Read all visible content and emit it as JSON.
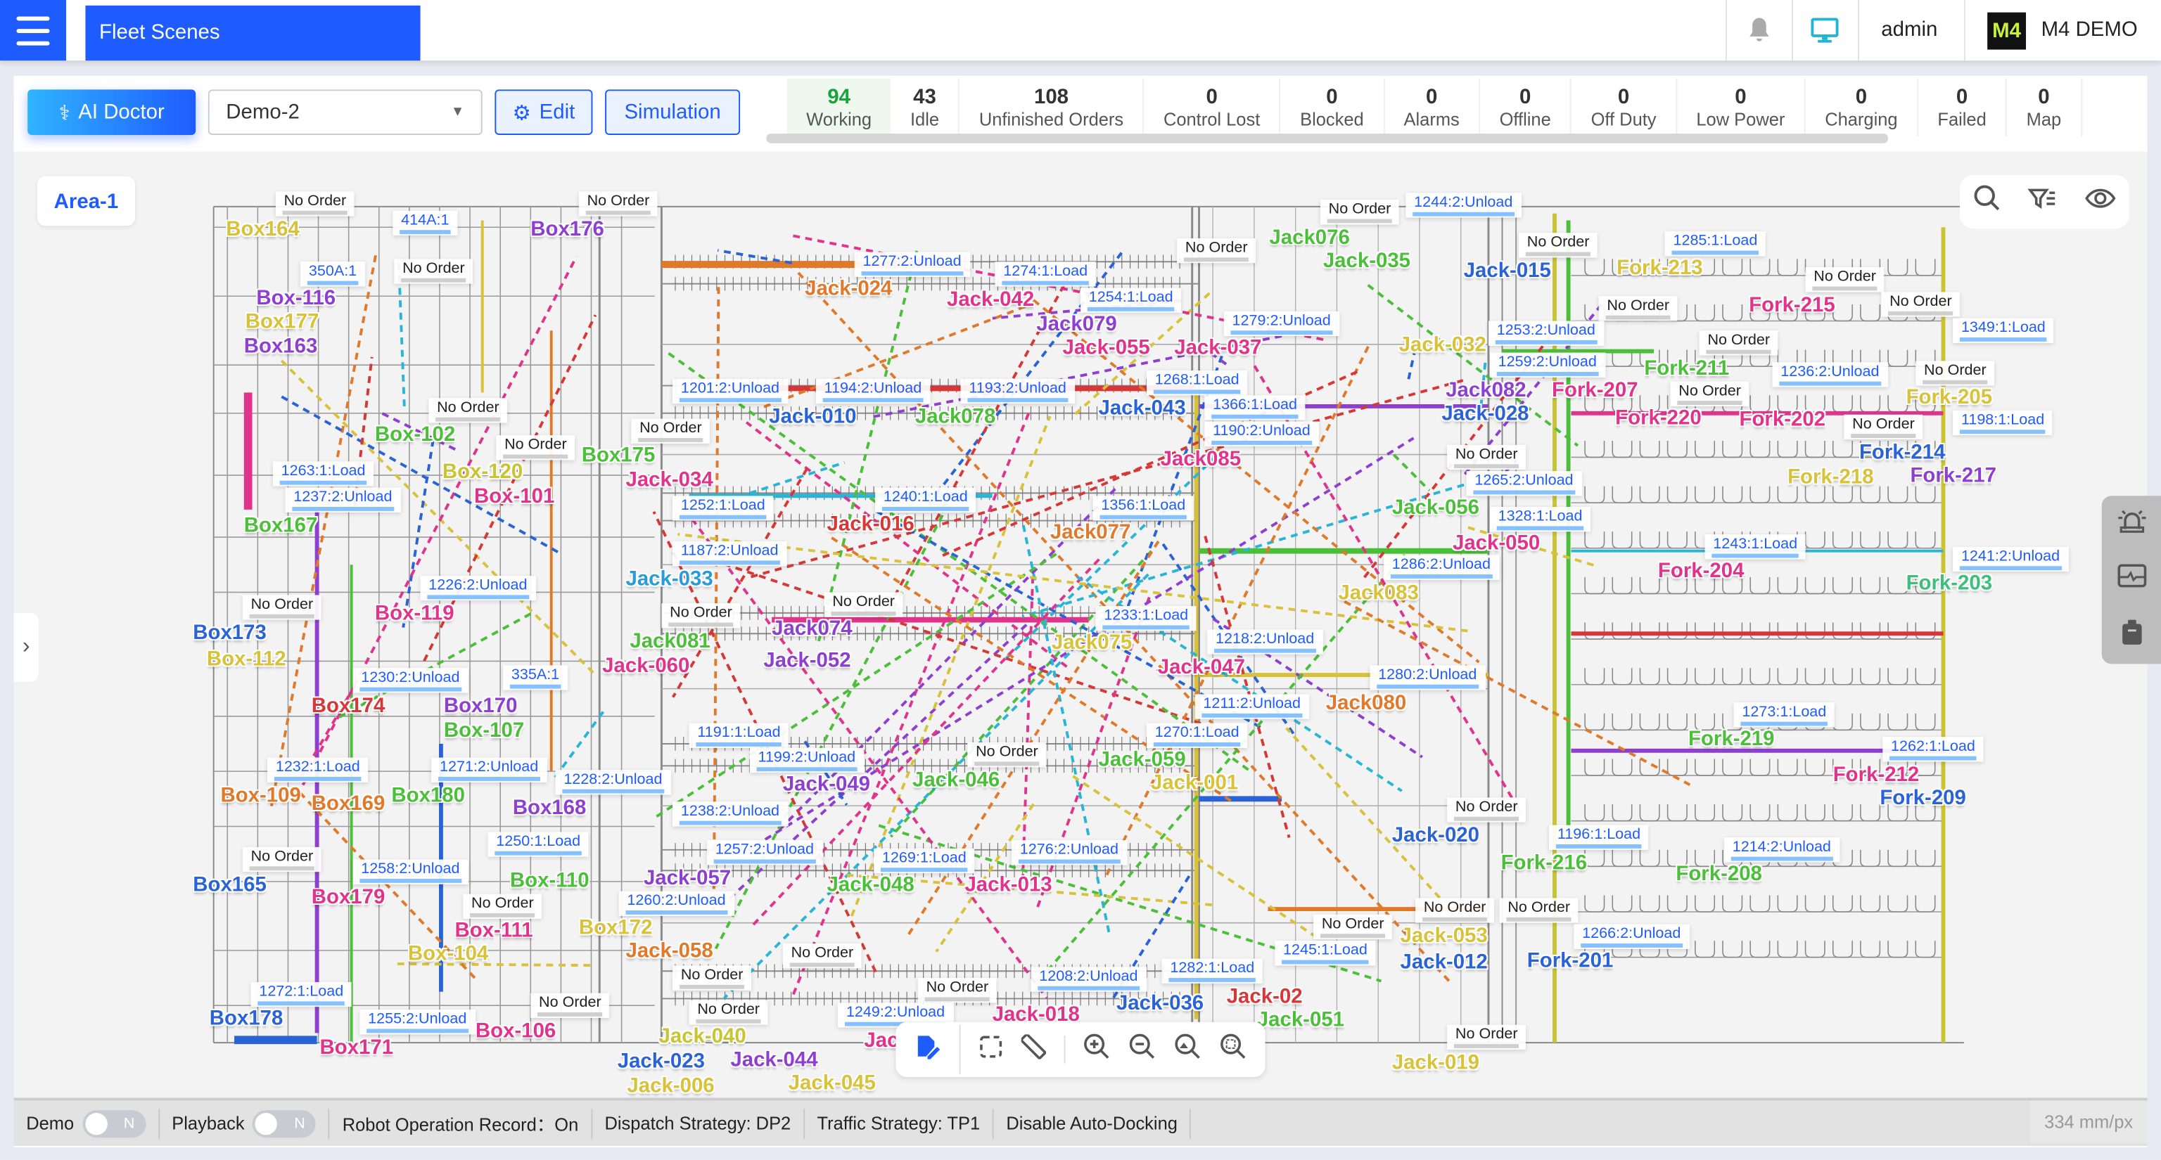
{
  "header": {
    "tab": "Fleet Scenes",
    "user": "admin",
    "brand": "M4 DEMO",
    "logo": "M4",
    "icons": [
      "menu-icon",
      "bell-icon",
      "monitor-icon"
    ]
  },
  "toolbar": {
    "ai_doctor": "AI Doctor",
    "scene": "Demo-2",
    "edit": "Edit",
    "simulation": "Simulation"
  },
  "stats": [
    {
      "n": "94",
      "l": "Working"
    },
    {
      "n": "43",
      "l": "Idle"
    },
    {
      "n": "108",
      "l": "Unfinished Orders"
    },
    {
      "n": "0",
      "l": "Control Lost"
    },
    {
      "n": "0",
      "l": "Blocked"
    },
    {
      "n": "0",
      "l": "Alarms"
    },
    {
      "n": "0",
      "l": "Offline"
    },
    {
      "n": "0",
      "l": "Off Duty"
    },
    {
      "n": "0",
      "l": "Low Power"
    },
    {
      "n": "0",
      "l": "Charging"
    },
    {
      "n": "0",
      "l": "Failed"
    },
    {
      "n": "0",
      "l": "Map"
    }
  ],
  "map": {
    "area": "Area-1",
    "no_order": "No Order",
    "robots": [
      {
        "name": "Box164",
        "color": "#d8c23a"
      },
      {
        "name": "Box-116",
        "color": "#8e3fd0"
      },
      {
        "name": "Box177",
        "color": "#d8c23a"
      },
      {
        "name": "Box163",
        "color": "#8e3fd0"
      },
      {
        "name": "Box176",
        "color": "#8e3fd0"
      },
      {
        "name": "Box-102",
        "color": "#4cbf3a"
      },
      {
        "name": "Box175",
        "color": "#4cbf3a"
      },
      {
        "name": "Box-120",
        "color": "#c9c432"
      },
      {
        "name": "Box167",
        "color": "#4cbf3a"
      },
      {
        "name": "Box-101",
        "color": "#e0348c"
      },
      {
        "name": "Box-119",
        "color": "#e0348c"
      },
      {
        "name": "Box173",
        "color": "#2a63d6"
      },
      {
        "name": "Box-112",
        "color": "#d8c23a"
      },
      {
        "name": "Box174",
        "color": "#d63838"
      },
      {
        "name": "Box170",
        "color": "#8e3fd0"
      },
      {
        "name": "Box-107",
        "color": "#4cbf3a"
      },
      {
        "name": "Box-109",
        "color": "#e07a2a"
      },
      {
        "name": "Box169",
        "color": "#e07a2a"
      },
      {
        "name": "Box180",
        "color": "#4cbf3a"
      },
      {
        "name": "Box168",
        "color": "#8e3fd0"
      },
      {
        "name": "Box165",
        "color": "#2a63d6"
      },
      {
        "name": "Box179",
        "color": "#e0348c"
      },
      {
        "name": "Box-111",
        "color": "#e0348c"
      },
      {
        "name": "Box-110",
        "color": "#4cbf3a"
      },
      {
        "name": "Box-104",
        "color": "#d8c23a"
      },
      {
        "name": "Box172",
        "color": "#d8c23a"
      },
      {
        "name": "Box178",
        "color": "#2a63d6"
      },
      {
        "name": "Box171",
        "color": "#e0348c"
      },
      {
        "name": "Box-106",
        "color": "#e0348c"
      },
      {
        "name": "Jack-024",
        "color": "#e07a2a"
      },
      {
        "name": "Jack-042",
        "color": "#e0348c"
      },
      {
        "name": "Jack079",
        "color": "#8e3fd0"
      },
      {
        "name": "Jack-055",
        "color": "#e0348c"
      },
      {
        "name": "Jack-037",
        "color": "#e0348c"
      },
      {
        "name": "Jack076",
        "color": "#4cbf3a"
      },
      {
        "name": "Jack-035",
        "color": "#4cbf3a"
      },
      {
        "name": "Jack-015",
        "color": "#2a63d6"
      },
      {
        "name": "Jack082",
        "color": "#8e3fd0"
      },
      {
        "name": "Jack-032",
        "color": "#d8c23a"
      },
      {
        "name": "Jack-028",
        "color": "#2a63d6"
      },
      {
        "name": "Jack-034",
        "color": "#e0348c"
      },
      {
        "name": "Jack-010",
        "color": "#2a63d6"
      },
      {
        "name": "Jack078",
        "color": "#4cbf3a"
      },
      {
        "name": "Jack-043",
        "color": "#2a63d6"
      },
      {
        "name": "Jack085",
        "color": "#e0348c"
      },
      {
        "name": "Jack-056",
        "color": "#4cbf3a"
      },
      {
        "name": "Jack-033",
        "color": "#2a9bd6"
      },
      {
        "name": "Jack-016",
        "color": "#d63838"
      },
      {
        "name": "Jack077",
        "color": "#e07a2a"
      },
      {
        "name": "Jack081",
        "color": "#4cbf3a"
      },
      {
        "name": "Jack-050",
        "color": "#e0348c"
      },
      {
        "name": "Jack083",
        "color": "#d8c23a"
      },
      {
        "name": "Jack-060",
        "color": "#e0348c"
      },
      {
        "name": "Jack074",
        "color": "#8e3fd0"
      },
      {
        "name": "Jack-052",
        "color": "#8e3fd0"
      },
      {
        "name": "Jack075",
        "color": "#d8c23a"
      },
      {
        "name": "Jack-047",
        "color": "#e0348c"
      },
      {
        "name": "Jack080",
        "color": "#e07a2a"
      },
      {
        "name": "Jack-057",
        "color": "#8e3fd0"
      },
      {
        "name": "Jack-049",
        "color": "#8e3fd0"
      },
      {
        "name": "Jack-059",
        "color": "#4cbf3a"
      },
      {
        "name": "Jack-001",
        "color": "#d8c23a"
      },
      {
        "name": "Jack-046",
        "color": "#4cbf3a"
      },
      {
        "name": "Jack-020",
        "color": "#2a63d6"
      },
      {
        "name": "Jack-058",
        "color": "#e07a2a"
      },
      {
        "name": "Jack-040",
        "color": "#c9c432"
      },
      {
        "name": "Jack-048",
        "color": "#4cbf3a"
      },
      {
        "name": "Jack-013",
        "color": "#e0348c"
      },
      {
        "name": "Jack-02",
        "color": "#d63838"
      },
      {
        "name": "Jack-051",
        "color": "#4cbf3a"
      },
      {
        "name": "Jack-053",
        "color": "#d8c23a"
      },
      {
        "name": "Jack-012",
        "color": "#2a63d6"
      },
      {
        "name": "Jack-044",
        "color": "#8e3fd0"
      },
      {
        "name": "Jack-045",
        "color": "#d8c23a"
      },
      {
        "name": "Jack072",
        "color": "#e0348c"
      },
      {
        "name": "Jack-018",
        "color": "#e0348c"
      },
      {
        "name": "Jack-036",
        "color": "#2a63d6"
      },
      {
        "name": "Jack-023",
        "color": "#2a63d6"
      },
      {
        "name": "Jack-006",
        "color": "#d8c23a"
      },
      {
        "name": "Jack-019",
        "color": "#d8c23a"
      },
      {
        "name": "Fork-213",
        "color": "#d8c23a"
      },
      {
        "name": "Fork-215",
        "color": "#e0348c"
      },
      {
        "name": "Fork-207",
        "color": "#e0348c"
      },
      {
        "name": "Fork-211",
        "color": "#4cbf3a"
      },
      {
        "name": "Fork-205",
        "color": "#d8c23a"
      },
      {
        "name": "Fork-214",
        "color": "#2a63d6"
      },
      {
        "name": "Fork-202",
        "color": "#e0348c"
      },
      {
        "name": "Fork-220",
        "color": "#e0348c"
      },
      {
        "name": "Fork-218",
        "color": "#d8c23a"
      },
      {
        "name": "Fork-217",
        "color": "#8e3fd0"
      },
      {
        "name": "Fork-204",
        "color": "#e0348c"
      },
      {
        "name": "Fork-203",
        "color": "#3ac07a"
      },
      {
        "name": "Fork-219",
        "color": "#4cbf3a"
      },
      {
        "name": "Fork-212",
        "color": "#e0348c"
      },
      {
        "name": "Fork-209",
        "color": "#2a63d6"
      },
      {
        "name": "Fork-216",
        "color": "#4cbf3a"
      },
      {
        "name": "Fork-208",
        "color": "#4cbf3a"
      },
      {
        "name": "Fork-201",
        "color": "#2a63d6"
      }
    ],
    "tasks": [
      "414A:1",
      "350A:1",
      "1277:2:Unload",
      "1274:1:Load",
      "1254:1:Load",
      "1244:2:Unload",
      "1285:1:Load",
      "1253:2:Unload",
      "1279:2:Unload",
      "1349:1:Load",
      "1201:2:Unload",
      "1194:2:Unload",
      "1193:2:Unload",
      "1268:1:Load",
      "1366:1:Load",
      "1259:2:Unload",
      "1236:2:Unload",
      "1198:1:Load",
      "1190:2:Unload",
      "1265:2:Unload",
      "1263:1:Load",
      "1237:2:Unload",
      "1252:1:Load",
      "1240:1:Load",
      "1356:1:Load",
      "1328:1:Load",
      "1187:2:Unload",
      "1243:1:Load",
      "1241:2:Unload",
      "1286:2:Unload",
      "1226:2:Unload",
      "1233:1:Load",
      "1218:2:Unload",
      "335A:1",
      "1230:2:Unload",
      "1280:2:Unload",
      "1211:2:Unload",
      "1273:1:Load",
      "1191:1:Load",
      "1199:2:Unload",
      "1270:1:Load",
      "1262:1:Load",
      "1232:1:Load",
      "1271:2:Unload",
      "1228:2:Unload",
      "1238:2:Unload",
      "1196:1:Load",
      "1214:2:Unload",
      "1250:1:Load",
      "1258:2:Unload",
      "1257:2:Unload",
      "1276:2:Unload",
      "1269:1:Load",
      "1260:2:Unload",
      "1266:2:Unload",
      "1245:1:Load",
      "1249:2:Unload",
      "1208:2:Unload",
      "1282:1:Load",
      "1272:1:Load",
      "1255:2:Unload"
    ],
    "tools_top": [
      "search-icon",
      "filter-list-icon",
      "eye-icon"
    ],
    "tools_side": [
      "alarm-light-icon",
      "monitor-pulse-icon",
      "clipboard-icon"
    ],
    "tools_bottom": [
      "edit-document-icon",
      "select-box-icon",
      "ruler-icon",
      "zoom-in-icon",
      "zoom-out-icon",
      "zoom-fit-image-icon",
      "zoom-area-icon"
    ]
  },
  "bottom": {
    "demo": "Demo",
    "demo_toggle": "N",
    "playback": "Playback",
    "playback_toggle": "N",
    "record": "Robot Operation Record：On",
    "dispatch": "Dispatch Strategy: DP2",
    "traffic": "Traffic Strategy: TP1",
    "docking": "Disable Auto-Docking",
    "scale": "334 mm/px"
  }
}
